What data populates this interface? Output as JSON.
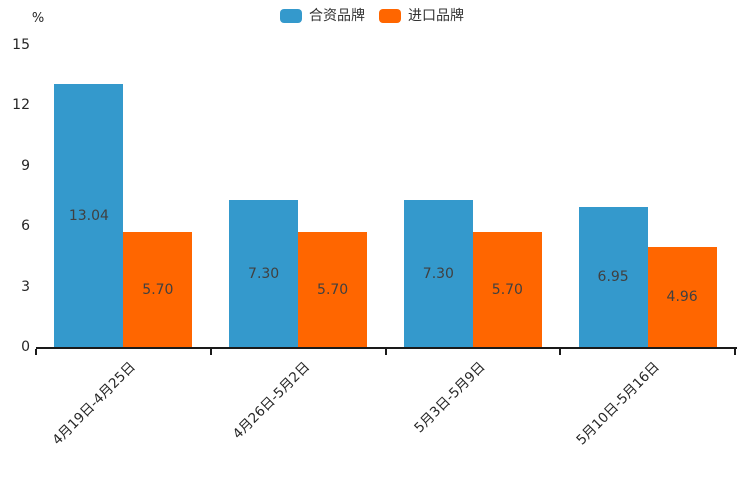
{
  "chart_data": {
    "type": "bar",
    "title": "",
    "xlabel": "",
    "ylabel": "%",
    "ylim": [
      0,
      15
    ],
    "yticks": [
      0,
      3,
      6,
      9,
      12,
      15
    ],
    "grid": false,
    "legend_position": "top-center",
    "categories": [
      "4月19日-4月25日",
      "4月26日-5月2日",
      "5月3日-5月9日",
      "5月10日-5月16日"
    ],
    "series": [
      {
        "name": "合资品牌",
        "color": "#3499cc",
        "values": [
          13.04,
          7.3,
          7.3,
          6.95
        ],
        "labels": [
          "13.04",
          "7.30",
          "7.30",
          "6.95"
        ]
      },
      {
        "name": "进口品牌",
        "color": "#ff6600",
        "values": [
          5.7,
          5.7,
          5.7,
          4.96
        ],
        "labels": [
          "5.70",
          "5.70",
          "5.70",
          "4.96"
        ]
      }
    ]
  },
  "colors": {
    "background": "#ffffff",
    "axis": "#1a1a1a",
    "tick_label": "#262626",
    "value_label": "#404040",
    "legend_text": "#333333"
  }
}
